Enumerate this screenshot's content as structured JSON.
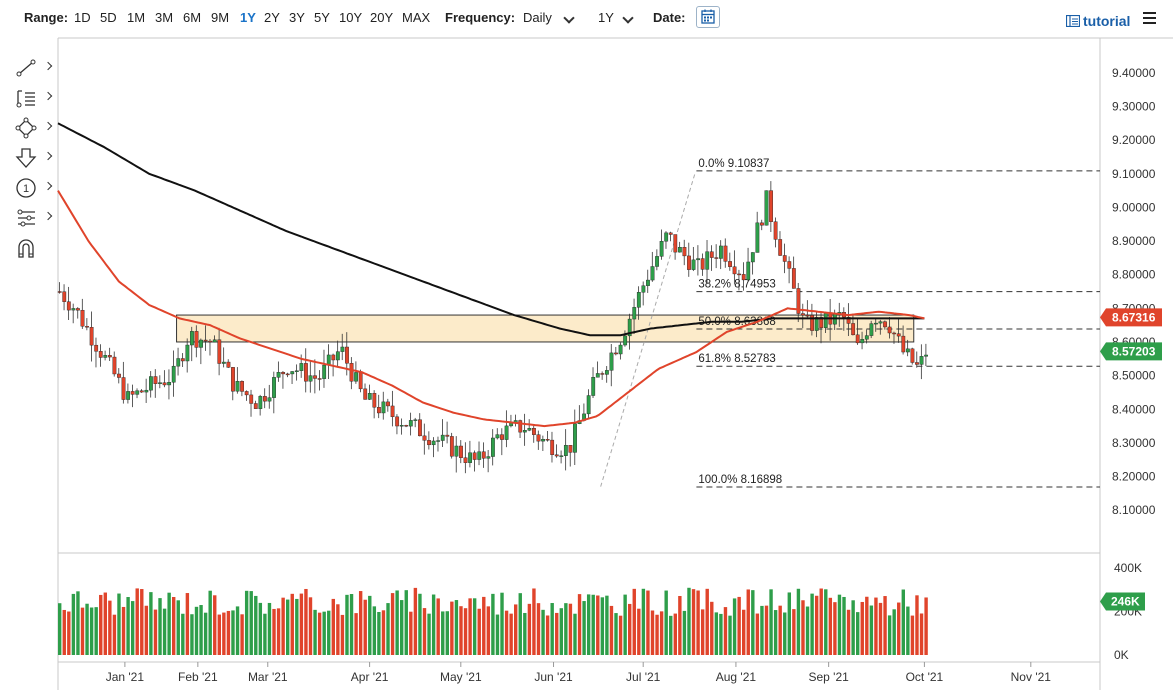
{
  "toolbar": {
    "range_label": "Range:",
    "ranges": [
      "1D",
      "5D",
      "1M",
      "3M",
      "6M",
      "9M",
      "1Y",
      "2Y",
      "3Y",
      "5Y",
      "10Y",
      "20Y",
      "MAX"
    ],
    "active_range": "1Y",
    "frequency_label": "Frequency:",
    "frequency_value": "Daily",
    "period_value": "1Y",
    "date_label": "Date:",
    "tutorial_label": "tutorial"
  },
  "left_tools": [
    "line-tool-icon",
    "text-list-icon",
    "shape-tool-icon",
    "arrow-down-icon",
    "number-marker-icon",
    "fib-tool-icon",
    "magnet-icon"
  ],
  "colors": {
    "up": "#2e9e4a",
    "down": "#e0442b",
    "ma_short": "#e0442b",
    "ma_long": "#111111",
    "zone_fill": "#fbe4b8",
    "current_price_bg": "#2e9e4a",
    "ma_badge_bg": "#e0442b"
  },
  "chart_data": {
    "type": "candlestick",
    "y_range": [
      8.05,
      9.45
    ],
    "y_ticks": [
      "9.40000",
      "9.30000",
      "9.20000",
      "9.10000",
      "9.00000",
      "8.90000",
      "8.80000",
      "8.70000",
      "8.60000",
      "8.50000",
      "8.40000",
      "8.30000",
      "8.20000",
      "8.10000"
    ],
    "x_ticks": [
      "Jan '21",
      "Feb '21",
      "Mar '21",
      "Apr '21",
      "May '21",
      "Jun '21",
      "Jul '21",
      "Aug '21",
      "Sep '21",
      "Oct '21",
      "Nov '21"
    ],
    "current_price": "8.57203",
    "ma_value": "8.67316",
    "resistance_zone": [
      8.6,
      8.68
    ],
    "fib_levels": [
      {
        "label": "0.0% 9.10837",
        "value": 9.10837
      },
      {
        "label": "38.2% 8.74953",
        "value": 8.74953
      },
      {
        "label": "50.0% 8.63868",
        "value": 8.63868
      },
      {
        "label": "61.8% 8.52783",
        "value": 8.52783
      },
      {
        "label": "100.0% 8.16898",
        "value": 8.16898
      }
    ],
    "price_path": [
      [
        0,
        8.75
      ],
      [
        10,
        8.7
      ],
      [
        30,
        8.55
      ],
      [
        45,
        8.43
      ],
      [
        60,
        8.47
      ],
      [
        75,
        8.5
      ],
      [
        85,
        8.62
      ],
      [
        100,
        8.6
      ],
      [
        115,
        8.47
      ],
      [
        130,
        8.42
      ],
      [
        150,
        8.53
      ],
      [
        170,
        8.49
      ],
      [
        185,
        8.58
      ],
      [
        200,
        8.43
      ],
      [
        220,
        8.38
      ],
      [
        240,
        8.33
      ],
      [
        260,
        8.28
      ],
      [
        275,
        8.24
      ],
      [
        290,
        8.33
      ],
      [
        305,
        8.35
      ],
      [
        320,
        8.3
      ],
      [
        335,
        8.28
      ],
      [
        352,
        8.48
      ],
      [
        370,
        8.62
      ],
      [
        385,
        8.78
      ],
      [
        400,
        8.92
      ],
      [
        405,
        8.88
      ],
      [
        420,
        8.82
      ],
      [
        435,
        8.88
      ],
      [
        450,
        8.8
      ],
      [
        465,
        9.02
      ],
      [
        478,
        8.82
      ],
      [
        490,
        8.65
      ],
      [
        505,
        8.66
      ],
      [
        515,
        8.68
      ],
      [
        525,
        8.58
      ],
      [
        535,
        8.68
      ],
      [
        545,
        8.66
      ],
      [
        555,
        8.57
      ],
      [
        565,
        8.52
      ],
      [
        570,
        8.57
      ]
    ],
    "ma_short_path": [
      [
        0,
        9.05
      ],
      [
        20,
        8.9
      ],
      [
        40,
        8.78
      ],
      [
        60,
        8.71
      ],
      [
        80,
        8.67
      ],
      [
        100,
        8.65
      ],
      [
        120,
        8.61
      ],
      [
        140,
        8.58
      ],
      [
        160,
        8.55
      ],
      [
        180,
        8.53
      ],
      [
        200,
        8.51
      ],
      [
        220,
        8.47
      ],
      [
        240,
        8.42
      ],
      [
        260,
        8.39
      ],
      [
        280,
        8.37
      ],
      [
        300,
        8.36
      ],
      [
        320,
        8.35
      ],
      [
        340,
        8.36
      ],
      [
        355,
        8.38
      ],
      [
        375,
        8.45
      ],
      [
        395,
        8.52
      ],
      [
        420,
        8.57
      ],
      [
        440,
        8.63
      ],
      [
        460,
        8.66
      ],
      [
        480,
        8.7
      ],
      [
        500,
        8.69
      ],
      [
        520,
        8.68
      ],
      [
        540,
        8.69
      ],
      [
        560,
        8.68
      ],
      [
        570,
        8.67
      ]
    ],
    "ma_long_path": [
      [
        0,
        9.25
      ],
      [
        30,
        9.18
      ],
      [
        60,
        9.1
      ],
      [
        90,
        9.05
      ],
      [
        120,
        8.99
      ],
      [
        150,
        8.93
      ],
      [
        180,
        8.88
      ],
      [
        210,
        8.83
      ],
      [
        240,
        8.78
      ],
      [
        270,
        8.73
      ],
      [
        300,
        8.68
      ],
      [
        330,
        8.64
      ],
      [
        350,
        8.62
      ],
      [
        370,
        8.62
      ],
      [
        390,
        8.64
      ],
      [
        410,
        8.65
      ],
      [
        430,
        8.66
      ],
      [
        450,
        8.66
      ],
      [
        470,
        8.67
      ],
      [
        490,
        8.67
      ],
      [
        510,
        8.67
      ],
      [
        530,
        8.67
      ],
      [
        550,
        8.67
      ],
      [
        570,
        8.67
      ]
    ],
    "volume_ticks": [
      "400K",
      "200K",
      "0K"
    ],
    "volume_range": [
      0,
      400000
    ],
    "volume_current": "246K",
    "volume_level": 246000
  }
}
